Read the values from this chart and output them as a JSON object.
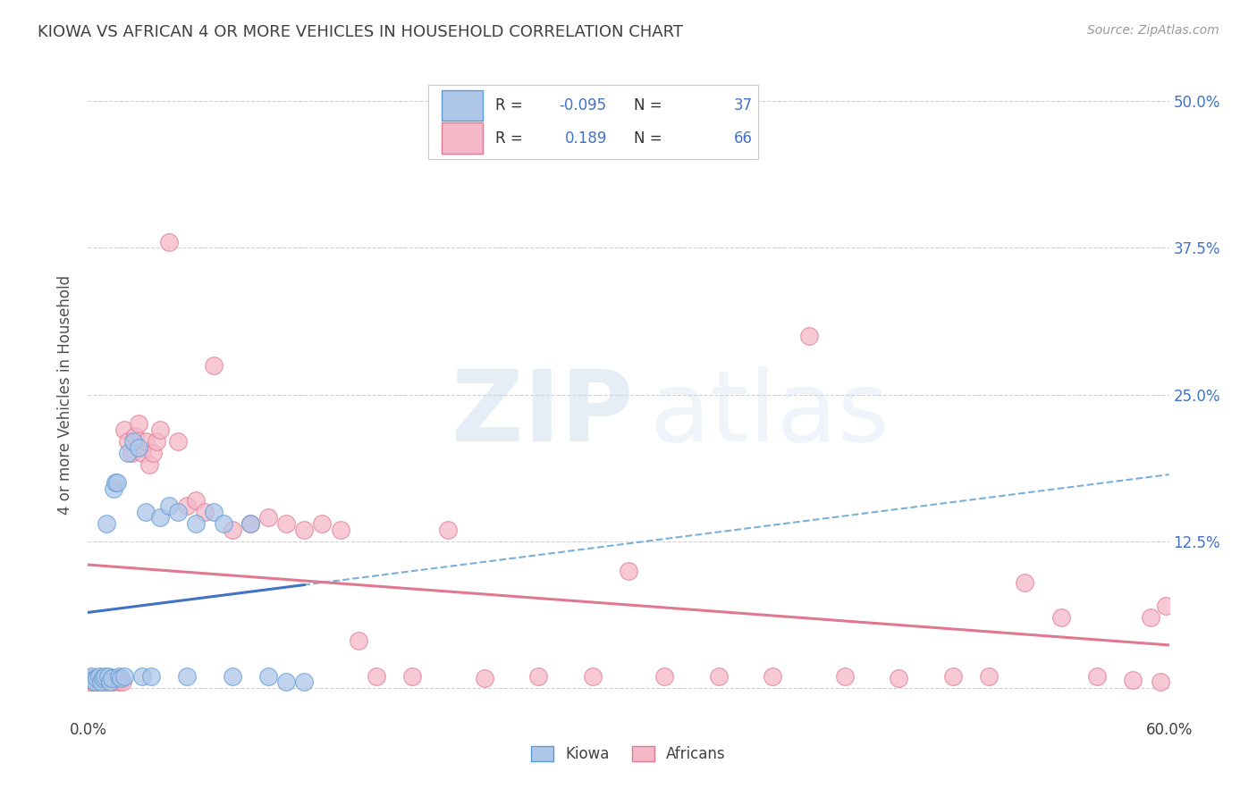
{
  "title": "KIOWA VS AFRICAN 4 OR MORE VEHICLES IN HOUSEHOLD CORRELATION CHART",
  "source": "Source: ZipAtlas.com",
  "ylabel": "4 or more Vehicles in Household",
  "xlim": [
    0.0,
    0.6
  ],
  "ylim": [
    -0.025,
    0.525
  ],
  "yticks": [
    0.0,
    0.125,
    0.25,
    0.375,
    0.5
  ],
  "ytick_labels": [
    "",
    "12.5%",
    "25.0%",
    "37.5%",
    "50.0%"
  ],
  "xticks": [
    0.0,
    0.1,
    0.2,
    0.3,
    0.4,
    0.5,
    0.6
  ],
  "xtick_labels": [
    "0.0%",
    "",
    "",
    "",
    "",
    "",
    "60.0%"
  ],
  "background_color": "#ffffff",
  "grid_color": "#d0d0d0",
  "kiowa_color": "#aec6e8",
  "kiowa_edge_color": "#5b9bd5",
  "african_color": "#f4b8c8",
  "african_edge_color": "#e07890",
  "legend_color": "#4472c4",
  "title_color": "#404040",
  "axis_tick_color": "#4472c4",
  "kiowa_line_color": "#4472c4",
  "african_line_color": "#e07890",
  "kiowa_x": [
    0.001,
    0.002,
    0.003,
    0.004,
    0.005,
    0.006,
    0.007,
    0.008,
    0.009,
    0.01,
    0.011,
    0.012,
    0.013,
    0.014,
    0.015,
    0.016,
    0.017,
    0.018,
    0.02,
    0.022,
    0.025,
    0.028,
    0.03,
    0.032,
    0.035,
    0.04,
    0.045,
    0.05,
    0.055,
    0.06,
    0.07,
    0.075,
    0.08,
    0.09,
    0.1,
    0.11,
    0.12
  ],
  "kiowa_y": [
    0.008,
    0.01,
    0.007,
    0.005,
    0.008,
    0.01,
    0.005,
    0.008,
    0.01,
    0.14,
    0.01,
    0.005,
    0.008,
    0.17,
    0.175,
    0.175,
    0.01,
    0.008,
    0.01,
    0.2,
    0.21,
    0.205,
    0.01,
    0.15,
    0.01,
    0.145,
    0.155,
    0.15,
    0.01,
    0.14,
    0.15,
    0.14,
    0.01,
    0.14,
    0.01,
    0.005,
    0.005
  ],
  "african_x": [
    0.001,
    0.002,
    0.003,
    0.004,
    0.005,
    0.006,
    0.007,
    0.008,
    0.009,
    0.01,
    0.011,
    0.012,
    0.013,
    0.014,
    0.015,
    0.016,
    0.017,
    0.018,
    0.019,
    0.02,
    0.022,
    0.024,
    0.026,
    0.028,
    0.03,
    0.032,
    0.034,
    0.036,
    0.038,
    0.04,
    0.045,
    0.05,
    0.055,
    0.06,
    0.065,
    0.07,
    0.08,
    0.09,
    0.1,
    0.11,
    0.12,
    0.13,
    0.14,
    0.15,
    0.16,
    0.18,
    0.2,
    0.22,
    0.25,
    0.28,
    0.3,
    0.32,
    0.35,
    0.38,
    0.4,
    0.42,
    0.45,
    0.48,
    0.5,
    0.52,
    0.54,
    0.56,
    0.58,
    0.59,
    0.595,
    0.598
  ],
  "african_y": [
    0.005,
    0.008,
    0.005,
    0.007,
    0.005,
    0.008,
    0.005,
    0.007,
    0.005,
    0.008,
    0.005,
    0.007,
    0.008,
    0.005,
    0.007,
    0.008,
    0.005,
    0.007,
    0.005,
    0.22,
    0.21,
    0.2,
    0.215,
    0.225,
    0.2,
    0.21,
    0.19,
    0.2,
    0.21,
    0.22,
    0.38,
    0.21,
    0.155,
    0.16,
    0.15,
    0.275,
    0.135,
    0.14,
    0.145,
    0.14,
    0.135,
    0.14,
    0.135,
    0.04,
    0.01,
    0.01,
    0.135,
    0.008,
    0.01,
    0.01,
    0.1,
    0.01,
    0.01,
    0.01,
    0.3,
    0.01,
    0.008,
    0.01,
    0.01,
    0.09,
    0.06,
    0.01,
    0.007,
    0.06,
    0.005,
    0.07
  ]
}
